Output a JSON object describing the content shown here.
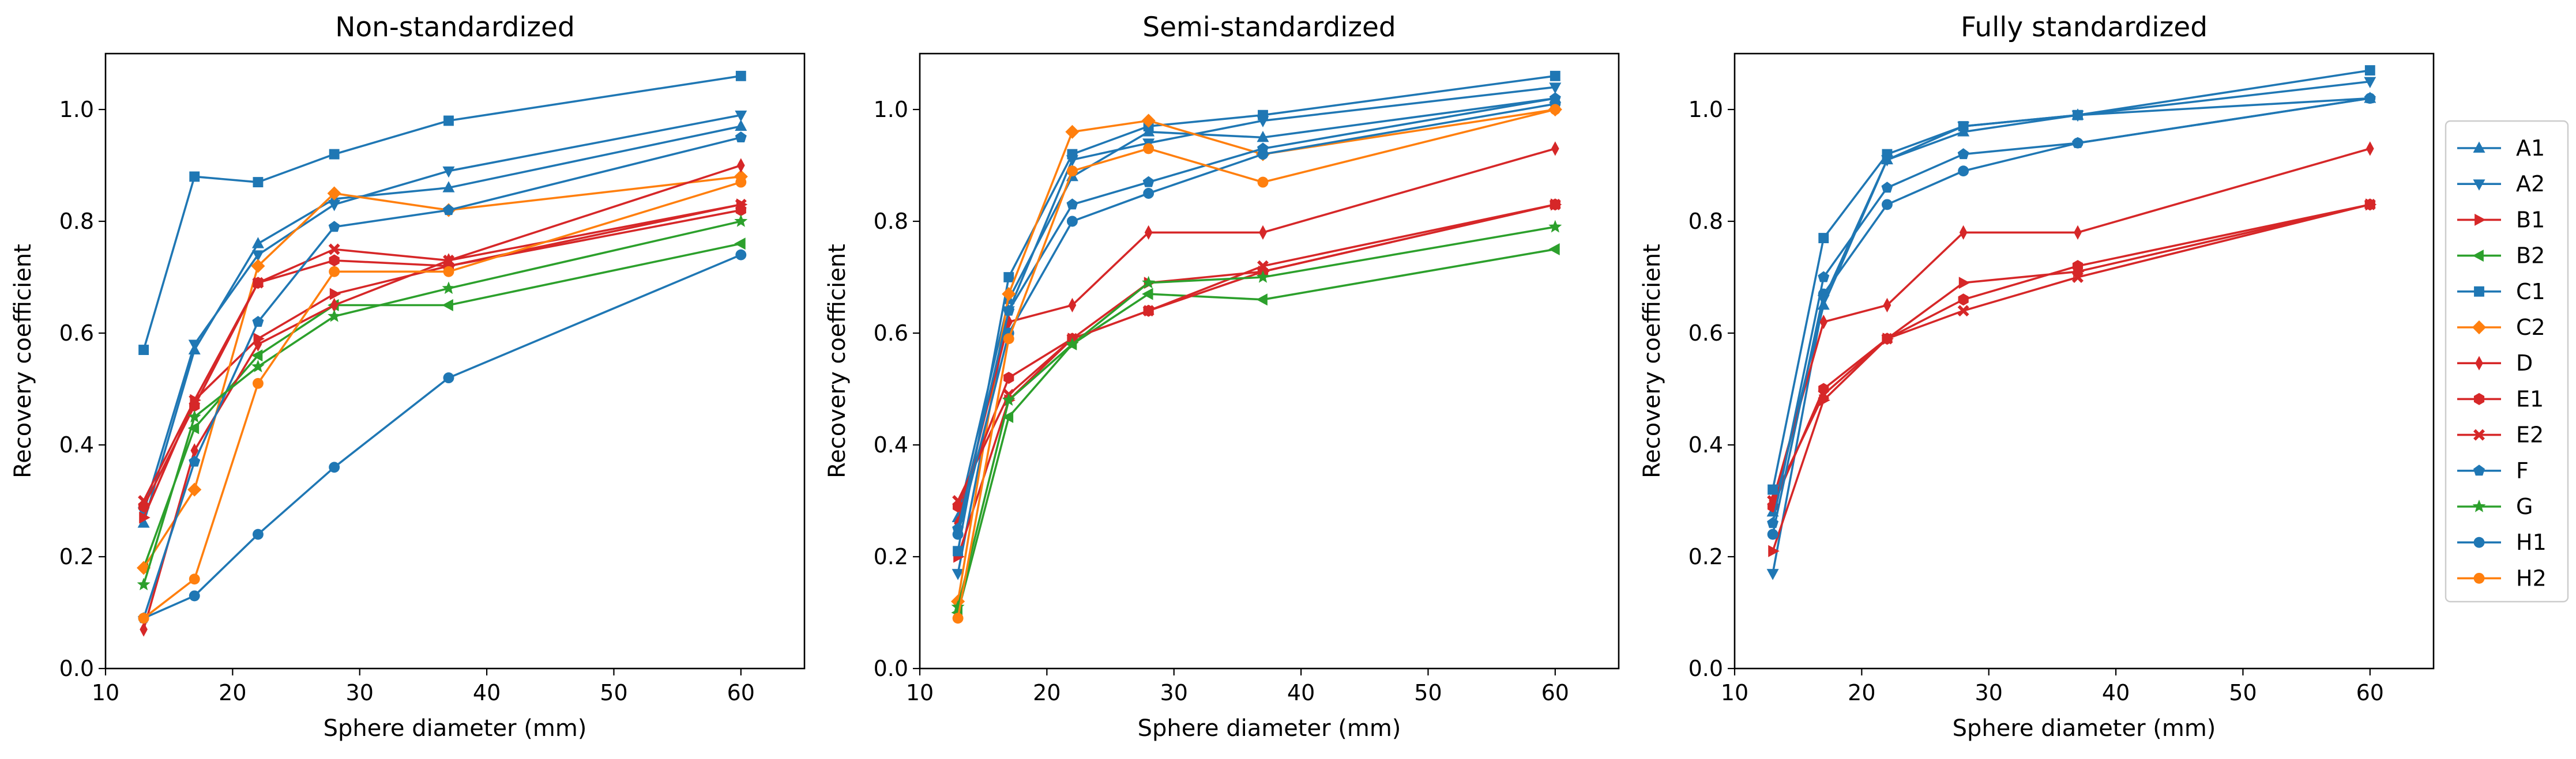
{
  "chart_data": {
    "type": "line",
    "xlabel": "Sphere diameter (mm)",
    "ylabel": "Recovery coefficient",
    "xlim": [
      10,
      65
    ],
    "ylim": [
      0.0,
      1.1
    ],
    "xticks": [
      10,
      20,
      30,
      40,
      50,
      60
    ],
    "yticks": [
      0.0,
      0.2,
      0.4,
      0.6,
      0.8,
      1.0
    ],
    "x": [
      13,
      17,
      22,
      28,
      37,
      60
    ],
    "legend_position": "right",
    "series_styles": [
      {
        "name": "A1",
        "color": "#1f77b4",
        "marker": "triangle-up"
      },
      {
        "name": "A2",
        "color": "#1f77b4",
        "marker": "triangle-down"
      },
      {
        "name": "B1",
        "color": "#d62728",
        "marker": "triangle-right"
      },
      {
        "name": "B2",
        "color": "#2ca02c",
        "marker": "triangle-left"
      },
      {
        "name": "C1",
        "color": "#1f77b4",
        "marker": "square"
      },
      {
        "name": "C2",
        "color": "#ff7f0e",
        "marker": "diamond"
      },
      {
        "name": "D",
        "color": "#d62728",
        "marker": "thin-diamond"
      },
      {
        "name": "E1",
        "color": "#d62728",
        "marker": "hexagon"
      },
      {
        "name": "E2",
        "color": "#d62728",
        "marker": "x"
      },
      {
        "name": "F",
        "color": "#1f77b4",
        "marker": "pentagon"
      },
      {
        "name": "G",
        "color": "#2ca02c",
        "marker": "star"
      },
      {
        "name": "H1",
        "color": "#1f77b4",
        "marker": "circle"
      },
      {
        "name": "H2",
        "color": "#ff7f0e",
        "marker": "circle"
      }
    ],
    "panels": [
      {
        "title": "Non-standardized",
        "series": [
          {
            "name": "A1",
            "values": [
              0.26,
              0.57,
              0.76,
              0.84,
              0.86,
              0.97
            ]
          },
          {
            "name": "A2",
            "values": [
              0.28,
              0.58,
              0.74,
              0.83,
              0.89,
              0.99
            ]
          },
          {
            "name": "B1",
            "values": [
              0.27,
              0.48,
              0.59,
              0.67,
              0.72,
              0.83
            ]
          },
          {
            "name": "B2",
            "values": [
              0.18,
              0.43,
              0.56,
              0.65,
              0.65,
              0.76
            ]
          },
          {
            "name": "C1",
            "values": [
              0.57,
              0.88,
              0.87,
              0.92,
              0.98,
              1.06
            ]
          },
          {
            "name": "C2",
            "values": [
              0.18,
              0.32,
              0.72,
              0.85,
              0.82,
              0.88
            ]
          },
          {
            "name": "D",
            "values": [
              0.07,
              0.39,
              0.58,
              0.65,
              0.73,
              0.9
            ]
          },
          {
            "name": "E1",
            "values": [
              0.29,
              0.47,
              0.69,
              0.73,
              0.72,
              0.82
            ]
          },
          {
            "name": "E2",
            "values": [
              0.3,
              0.48,
              0.69,
              0.75,
              0.73,
              0.83
            ]
          },
          {
            "name": "F",
            "values": [
              0.09,
              0.37,
              0.62,
              0.79,
              0.82,
              0.95
            ]
          },
          {
            "name": "G",
            "values": [
              0.15,
              0.45,
              0.54,
              0.63,
              0.68,
              0.8
            ]
          },
          {
            "name": "H1",
            "values": [
              0.09,
              0.13,
              0.24,
              0.36,
              0.52,
              0.74
            ]
          },
          {
            "name": "H2",
            "values": [
              0.09,
              0.16,
              0.51,
              0.71,
              0.71,
              0.87
            ]
          }
        ]
      },
      {
        "title": "Semi-standardized",
        "series": [
          {
            "name": "A1",
            "values": [
              0.27,
              0.66,
              0.88,
              0.96,
              0.95,
              1.02
            ]
          },
          {
            "name": "A2",
            "values": [
              0.17,
              0.64,
              0.91,
              0.94,
              0.98,
              1.04
            ]
          },
          {
            "name": "B1",
            "values": [
              0.2,
              0.48,
              0.59,
              0.69,
              0.71,
              0.83
            ]
          },
          {
            "name": "B2",
            "values": [
              0.1,
              0.45,
              0.58,
              0.67,
              0.66,
              0.75
            ]
          },
          {
            "name": "C1",
            "values": [
              0.21,
              0.7,
              0.92,
              0.97,
              0.99,
              1.06
            ]
          },
          {
            "name": "C2",
            "values": [
              0.12,
              0.67,
              0.96,
              0.98,
              0.92,
              1.0
            ]
          },
          {
            "name": "D",
            "values": [
              0.26,
              0.62,
              0.65,
              0.78,
              0.78,
              0.93
            ]
          },
          {
            "name": "E1",
            "values": [
              0.29,
              0.52,
              0.59,
              0.64,
              0.71,
              0.83
            ]
          },
          {
            "name": "E2",
            "values": [
              0.3,
              0.49,
              0.59,
              0.64,
              0.72,
              0.83
            ]
          },
          {
            "name": "F",
            "values": [
              0.25,
              0.64,
              0.83,
              0.87,
              0.93,
              1.02
            ]
          },
          {
            "name": "G",
            "values": [
              0.11,
              0.48,
              0.58,
              0.69,
              0.7,
              0.79
            ]
          },
          {
            "name": "H1",
            "values": [
              0.24,
              0.6,
              0.8,
              0.85,
              0.92,
              1.01
            ]
          },
          {
            "name": "H2",
            "values": [
              0.09,
              0.59,
              0.89,
              0.93,
              0.87,
              1.0
            ]
          }
        ]
      },
      {
        "title": "Fully standardized",
        "series": [
          {
            "name": "A1",
            "values": [
              0.28,
              0.65,
              0.91,
              0.96,
              0.99,
              1.02
            ]
          },
          {
            "name": "A2",
            "values": [
              0.17,
              0.66,
              0.91,
              0.97,
              0.99,
              1.05
            ]
          },
          {
            "name": "B1",
            "values": [
              0.21,
              0.48,
              0.59,
              0.69,
              0.71,
              0.83
            ]
          },
          {
            "name": "D",
            "values": [
              0.3,
              0.62,
              0.65,
              0.78,
              0.78,
              0.93
            ]
          },
          {
            "name": "E1",
            "values": [
              0.29,
              0.5,
              0.59,
              0.66,
              0.72,
              0.83
            ]
          },
          {
            "name": "E2",
            "values": [
              0.3,
              0.49,
              0.59,
              0.64,
              0.7,
              0.83
            ]
          },
          {
            "name": "C1",
            "values": [
              0.32,
              0.77,
              0.92,
              0.97,
              0.99,
              1.07
            ]
          },
          {
            "name": "F",
            "values": [
              0.26,
              0.7,
              0.86,
              0.92,
              0.94,
              1.02
            ]
          },
          {
            "name": "H1",
            "values": [
              0.24,
              0.67,
              0.83,
              0.89,
              0.94,
              1.02
            ]
          }
        ]
      }
    ]
  }
}
